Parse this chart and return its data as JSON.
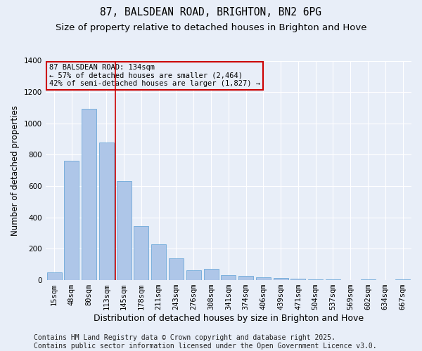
{
  "title": "87, BALSDEAN ROAD, BRIGHTON, BN2 6PG",
  "subtitle": "Size of property relative to detached houses in Brighton and Hove",
  "xlabel": "Distribution of detached houses by size in Brighton and Hove",
  "ylabel": "Number of detached properties",
  "categories": [
    "15sqm",
    "48sqm",
    "80sqm",
    "113sqm",
    "145sqm",
    "178sqm",
    "211sqm",
    "243sqm",
    "276sqm",
    "308sqm",
    "341sqm",
    "374sqm",
    "406sqm",
    "439sqm",
    "471sqm",
    "504sqm",
    "537sqm",
    "569sqm",
    "602sqm",
    "634sqm",
    "667sqm"
  ],
  "values": [
    50,
    760,
    1095,
    880,
    630,
    345,
    230,
    140,
    65,
    70,
    30,
    28,
    18,
    12,
    8,
    5,
    5,
    0,
    5,
    0,
    5
  ],
  "bar_color": "#aec6e8",
  "bar_edge_color": "#5a9fd4",
  "bg_color": "#e8eef8",
  "grid_color": "#ffffff",
  "vline_x": 3.5,
  "vline_color": "#cc0000",
  "annotation_text": "87 BALSDEAN ROAD: 134sqm\n← 57% of detached houses are smaller (2,464)\n42% of semi-detached houses are larger (1,827) →",
  "annotation_box_color": "#cc0000",
  "footer": "Contains HM Land Registry data © Crown copyright and database right 2025.\nContains public sector information licensed under the Open Government Licence v3.0.",
  "ylim": [
    0,
    1400
  ],
  "title_fontsize": 10.5,
  "subtitle_fontsize": 9.5,
  "xlabel_fontsize": 9,
  "ylabel_fontsize": 8.5,
  "tick_fontsize": 7.5,
  "footer_fontsize": 7
}
